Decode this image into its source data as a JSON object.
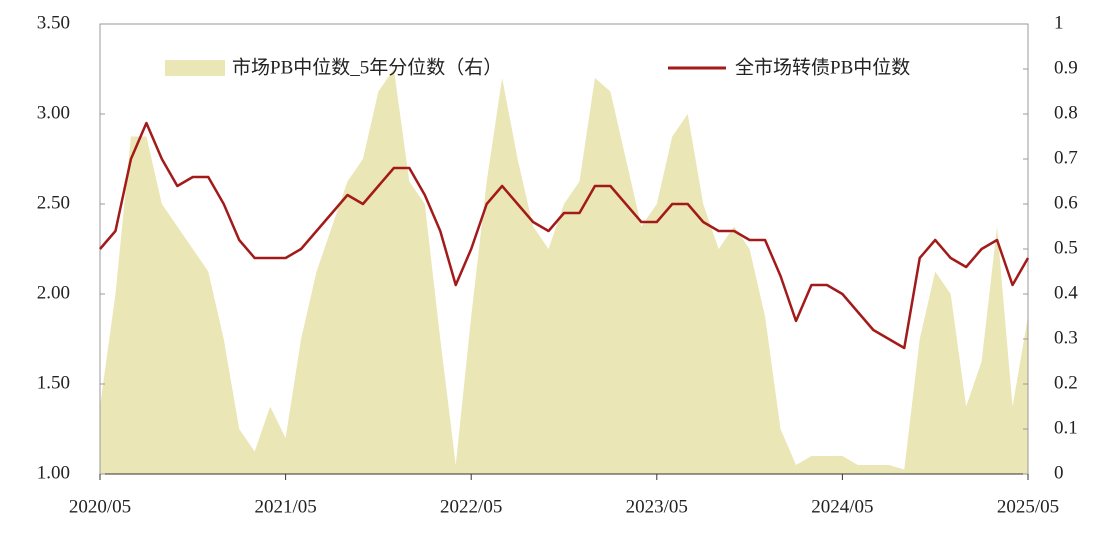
{
  "chart_data": {
    "type": "line",
    "x": [
      "2020/05",
      "2020/06",
      "2020/07",
      "2020/08",
      "2020/09",
      "2020/10",
      "2020/11",
      "2020/12",
      "2021/01",
      "2021/02",
      "2021/03",
      "2021/04",
      "2021/05",
      "2021/06",
      "2021/07",
      "2021/08",
      "2021/09",
      "2021/10",
      "2021/11",
      "2021/12",
      "2022/01",
      "2022/02",
      "2022/03",
      "2022/04",
      "2022/05",
      "2022/06",
      "2022/07",
      "2022/08",
      "2022/09",
      "2022/10",
      "2022/11",
      "2022/12",
      "2023/01",
      "2023/02",
      "2023/03",
      "2023/04",
      "2023/05",
      "2023/06",
      "2023/07",
      "2023/08",
      "2023/09",
      "2023/10",
      "2023/11",
      "2023/12",
      "2024/01",
      "2024/02",
      "2024/03",
      "2024/04",
      "2024/05",
      "2024/06",
      "2024/07",
      "2024/08",
      "2024/09",
      "2024/10",
      "2024/11",
      "2024/12",
      "2025/01",
      "2025/02",
      "2025/03",
      "2025/04",
      "2025/05"
    ],
    "xticks": [
      "2020/05",
      "2021/05",
      "2022/05",
      "2023/05",
      "2024/05",
      "2025/05"
    ],
    "series": [
      {
        "name": "市场PB中位数_5年分位数（右）",
        "type": "area",
        "axis": "y2",
        "color": "#ebe6b5",
        "values": [
          0.15,
          0.4,
          0.75,
          0.75,
          0.6,
          0.55,
          0.5,
          0.45,
          0.3,
          0.1,
          0.05,
          0.15,
          0.08,
          0.3,
          0.45,
          0.55,
          0.65,
          0.7,
          0.85,
          0.9,
          0.65,
          0.6,
          0.3,
          0.02,
          0.35,
          0.65,
          0.88,
          0.7,
          0.55,
          0.5,
          0.6,
          0.65,
          0.88,
          0.85,
          0.7,
          0.55,
          0.6,
          0.75,
          0.8,
          0.6,
          0.5,
          0.55,
          0.5,
          0.35,
          0.1,
          0.02,
          0.04,
          0.04,
          0.04,
          0.02,
          0.02,
          0.02,
          0.01,
          0.3,
          0.45,
          0.4,
          0.15,
          0.25,
          0.55,
          0.15,
          0.35
        ]
      },
      {
        "name": "全市场转债PB中位数",
        "type": "line",
        "color": "#a31a1a",
        "values": [
          2.25,
          2.35,
          2.75,
          2.95,
          2.75,
          2.6,
          2.65,
          2.65,
          2.5,
          2.3,
          2.2,
          2.2,
          2.2,
          2.25,
          2.35,
          2.45,
          2.55,
          2.5,
          2.6,
          2.7,
          2.7,
          2.55,
          2.35,
          2.05,
          2.25,
          2.5,
          2.6,
          2.5,
          2.4,
          2.35,
          2.45,
          2.45,
          2.6,
          2.6,
          2.5,
          2.4,
          2.4,
          2.5,
          2.5,
          2.4,
          2.35,
          2.35,
          2.3,
          2.3,
          2.1,
          1.85,
          2.05,
          2.05,
          2.0,
          1.9,
          1.8,
          1.75,
          1.7,
          2.2,
          2.3,
          2.2,
          2.15,
          2.25,
          2.3,
          2.05,
          2.2
        ]
      }
    ],
    "ylim": [
      1.0,
      3.5
    ],
    "yticks": [
      {
        "value": 1.0,
        "label": "1.00"
      },
      {
        "value": 1.5,
        "label": "1.50"
      },
      {
        "value": 2.0,
        "label": "2.00"
      },
      {
        "value": 2.5,
        "label": "2.50"
      },
      {
        "value": 3.0,
        "label": "3.00"
      },
      {
        "value": 3.5,
        "label": "3.50"
      }
    ],
    "y2lim": [
      0,
      1
    ],
    "y2ticks": [
      0,
      0.1,
      0.2,
      0.3,
      0.4,
      0.5,
      0.6,
      0.7,
      0.8,
      0.9,
      1
    ]
  }
}
